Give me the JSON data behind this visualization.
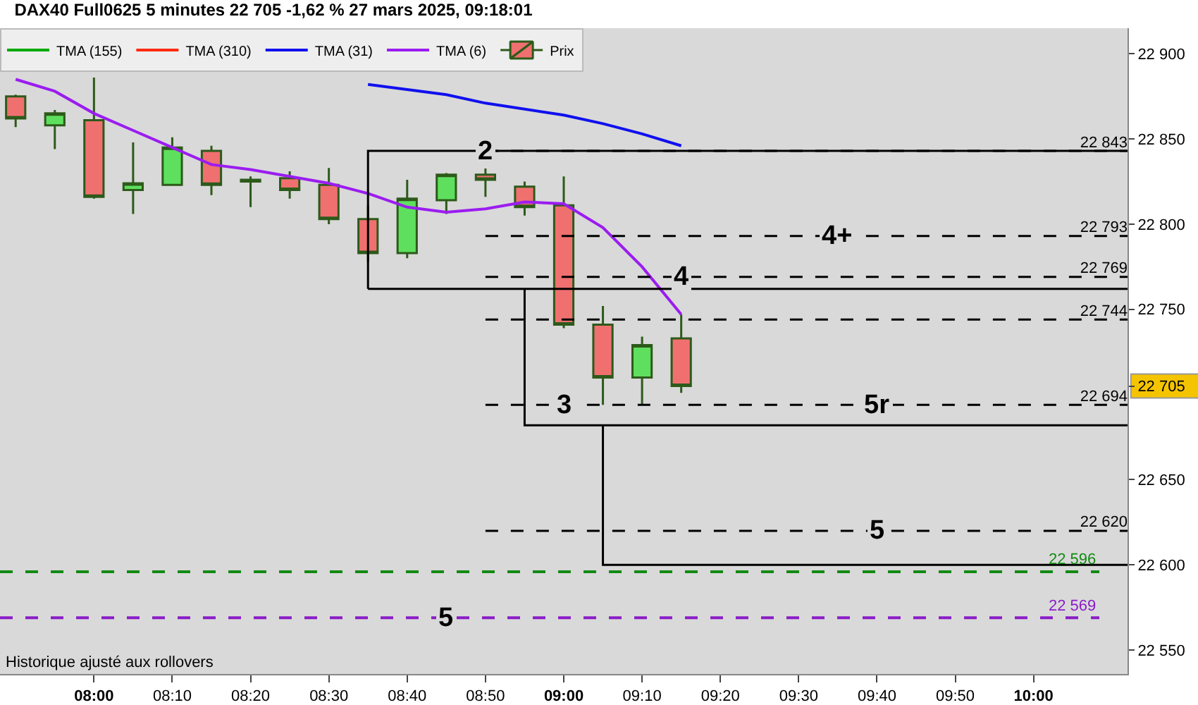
{
  "chart_data": {
    "type": "candlestick",
    "title": "DAX40 Full0625 5 minutes 22 705 -1,62 % 27 mars 2025, 09:18:01",
    "xlim": [
      "2025-03-27T07:48",
      "2025-03-27T10:12"
    ],
    "xticks": [
      {
        "value": "2025-03-27T08:00",
        "label": "08:00"
      },
      {
        "value": "2025-03-27T08:10",
        "label": "08:10"
      },
      {
        "value": "2025-03-27T08:20",
        "label": "08:20"
      },
      {
        "value": "2025-03-27T08:30",
        "label": "08:30"
      },
      {
        "value": "2025-03-27T08:40",
        "label": "08:40"
      },
      {
        "value": "2025-03-27T08:50",
        "label": "08:50"
      },
      {
        "value": "2025-03-27T09:00",
        "label": "09:00"
      },
      {
        "value": "2025-03-27T09:10",
        "label": "09:10"
      },
      {
        "value": "2025-03-27T09:20",
        "label": "09:20"
      },
      {
        "value": "2025-03-27T09:30",
        "label": "09:30"
      },
      {
        "value": "2025-03-27T09:40",
        "label": "09:40"
      },
      {
        "value": "2025-03-27T09:50",
        "label": "09:50"
      },
      {
        "value": "2025-03-27T10:00",
        "label": "10:00"
      }
    ],
    "ylim": [
      22536,
      22915
    ],
    "yticks": [
      {
        "value": 22550,
        "label": "22 550"
      },
      {
        "value": 22600,
        "label": "22 600"
      },
      {
        "value": 22650,
        "label": "22 650"
      },
      {
        "value": 22705,
        "label": "22 705"
      },
      {
        "value": 22750,
        "label": "22 750"
      },
      {
        "value": 22800,
        "label": "22 800"
      },
      {
        "value": 22850,
        "label": "22 850"
      },
      {
        "value": 22900,
        "label": "22 900"
      }
    ],
    "grid": false,
    "legend": "top left",
    "series": [
      {
        "name": "Prix",
        "colors": [
          "#f07070",
          "#5ee05e",
          "#f07070",
          "#5ee05e",
          "#5ee05e",
          "#f07070",
          "#2d5a1a",
          "#f07070",
          "#f07070",
          "#f07070",
          "#5ee05e",
          "#5ee05e",
          "#f07070",
          "#f07070",
          "#f07070",
          "#f07070",
          "#5ee05e",
          "#f07070"
        ],
        "color": "#2d5a1a",
        "x": [
          "2025-03-27T07:50",
          "2025-03-27T07:55",
          "2025-03-27T08:00",
          "2025-03-27T08:05",
          "2025-03-27T08:10",
          "2025-03-27T08:15",
          "2025-03-27T08:20",
          "2025-03-27T08:25",
          "2025-03-27T08:30",
          "2025-03-27T08:35",
          "2025-03-27T08:40",
          "2025-03-27T08:45",
          "2025-03-27T08:50",
          "2025-03-27T08:55",
          "2025-03-27T09:00",
          "2025-03-27T09:05",
          "2025-03-27T09:10",
          "2025-03-27T09:15"
        ],
        "ohlc": [
          [
            22875,
            22876,
            22857,
            22862
          ],
          [
            22858,
            22867,
            22844,
            22865
          ],
          [
            22861,
            22886,
            22815,
            22816
          ],
          [
            22820,
            22848,
            22806,
            22824
          ],
          [
            22823,
            22851,
            22823,
            22845
          ],
          [
            22843,
            22846,
            22817,
            22823
          ],
          [
            22825,
            22828,
            22810,
            22826
          ],
          [
            22827,
            22831,
            22815,
            22820
          ],
          [
            22823,
            22833,
            22800,
            22803
          ],
          [
            22803,
            22811,
            22778,
            22783
          ],
          [
            22783,
            22826,
            22780,
            22815
          ],
          [
            22814,
            22830,
            22806,
            22829
          ],
          [
            22829,
            22842,
            22816,
            22826
          ],
          [
            22822,
            22825,
            22805,
            22810
          ],
          [
            22811,
            22828,
            22739,
            22741
          ],
          [
            22741,
            22752,
            22694,
            22710
          ],
          [
            22710,
            22734,
            22694,
            22729
          ],
          [
            22733,
            22747,
            22701,
            22705
          ]
        ]
      },
      {
        "type": "line",
        "name": "TMA (155)",
        "color": "#00aa00"
      },
      {
        "type": "line",
        "name": "TMA (310)",
        "color": "#ff2a10"
      },
      {
        "type": "line",
        "name": "TMA (31)",
        "color": "#1010ee",
        "x": [
          "2025-03-27T08:35",
          "2025-03-27T08:45",
          "2025-03-27T08:50",
          "2025-03-27T09:00",
          "2025-03-27T09:05",
          "2025-03-27T09:10",
          "2025-03-27T09:15"
        ],
        "values": [
          22882,
          22876,
          22871,
          22864,
          22859,
          22853,
          22846
        ]
      },
      {
        "type": "line",
        "name": "TMA (6)",
        "color": "#9b1cf0",
        "x": [
          "2025-03-27T07:50",
          "2025-03-27T07:55",
          "2025-03-27T08:00",
          "2025-03-27T08:05",
          "2025-03-27T08:10",
          "2025-03-27T08:15",
          "2025-03-27T08:20",
          "2025-03-27T08:25",
          "2025-03-27T08:30",
          "2025-03-27T08:35",
          "2025-03-27T08:40",
          "2025-03-27T08:45",
          "2025-03-27T08:50",
          "2025-03-27T08:55",
          "2025-03-27T09:00",
          "2025-03-27T09:05",
          "2025-03-27T09:10",
          "2025-03-27T09:15"
        ],
        "values": [
          22885,
          22878,
          22865,
          22855,
          22845,
          22835,
          22832,
          22828,
          22824,
          22818,
          22810,
          22807,
          22809,
          22813,
          22812,
          22798,
          22775,
          22747
        ]
      },
      {
        "type": "line",
        "color": "#000000",
        "line_style": "dashed",
        "x": [
          "2025-03-27T08:50",
          "2025-03-27T10:12"
        ],
        "values": [
          22843,
          22843
        ],
        "value_labels": [
          null,
          "22 843"
        ]
      },
      {
        "type": "line",
        "color": "#000000",
        "line_style": "dashed",
        "x": [
          "2025-03-27T08:50",
          "2025-03-27T10:12"
        ],
        "values": [
          22793,
          22793
        ],
        "value_labels": [
          null,
          "22 793"
        ]
      },
      {
        "type": "line",
        "color": "#000000",
        "line_style": "dashed",
        "x": [
          "2025-03-27T08:50",
          "2025-03-27T10:12"
        ],
        "values": [
          22769,
          22769
        ],
        "value_labels": [
          null,
          "22 769"
        ]
      },
      {
        "type": "line",
        "color": "#000000",
        "line_style": "dashed",
        "x": [
          "2025-03-27T08:50",
          "2025-03-27T10:12"
        ],
        "values": [
          22744,
          22744
        ],
        "value_labels": [
          null,
          "22 744"
        ]
      },
      {
        "type": "line",
        "color": "#000000",
        "line_style": "dashed",
        "x": [
          "2025-03-27T08:50",
          "2025-03-27T10:12"
        ],
        "values": [
          22694,
          22694
        ],
        "value_labels": [
          null,
          "22 694"
        ]
      },
      {
        "type": "line",
        "color": "#000000",
        "line_style": "dashed",
        "x": [
          "2025-03-27T08:50",
          "2025-03-27T10:12"
        ],
        "values": [
          22620,
          22620
        ],
        "value_labels": [
          null,
          "22 620"
        ]
      },
      {
        "type": "line",
        "color": "#000000",
        "line_style": "solid",
        "x": [
          "2025-03-27T08:35",
          "2025-03-27T08:35",
          "2025-03-27T10:12"
        ],
        "values": [
          22762,
          22843,
          22843
        ]
      },
      {
        "type": "line",
        "color": "#000000",
        "line_style": "solid",
        "x": [
          "2025-03-27T08:35",
          "2025-03-27T10:12"
        ],
        "values": [
          22762,
          22762
        ]
      },
      {
        "type": "line",
        "color": "#000000",
        "line_style": "solid",
        "x": [
          "2025-03-27T08:55",
          "2025-03-27T08:55",
          "2025-03-27T10:12"
        ],
        "values": [
          22762,
          22682,
          22682
        ]
      },
      {
        "type": "line",
        "color": "#000000",
        "line_style": "solid",
        "x": [
          "2025-03-27T09:05",
          "2025-03-27T09:05",
          "2025-03-27T10:12"
        ],
        "values": [
          22682,
          22600,
          22600
        ]
      }
    ],
    "ref_lines": [
      {
        "axis": "y",
        "value": 22596,
        "label": "22 596",
        "color": "#138a13",
        "line_style": "dashed"
      },
      {
        "axis": "y",
        "value": 22569,
        "label": "22 569",
        "color": "#8a1cc8",
        "line_style": "dashed"
      }
    ],
    "annotations": [
      {
        "text": "2",
        "x": "2025-03-27T08:50",
        "y": 22843
      },
      {
        "text": "4+",
        "x": "2025-03-27T09:35",
        "y": 22793
      },
      {
        "text": "4",
        "x": "2025-03-27T09:15",
        "y": 22769
      },
      {
        "text": "3",
        "x": "2025-03-27T09:00",
        "y": 22694
      },
      {
        "text": "5r",
        "x": "2025-03-27T09:40",
        "y": 22694
      },
      {
        "text": "5",
        "x": "2025-03-27T09:40",
        "y": 22620
      },
      {
        "text": "5",
        "x": "2025-03-27T08:45",
        "y": 22569
      },
      "Historique ajusté aux rollovers"
    ]
  }
}
